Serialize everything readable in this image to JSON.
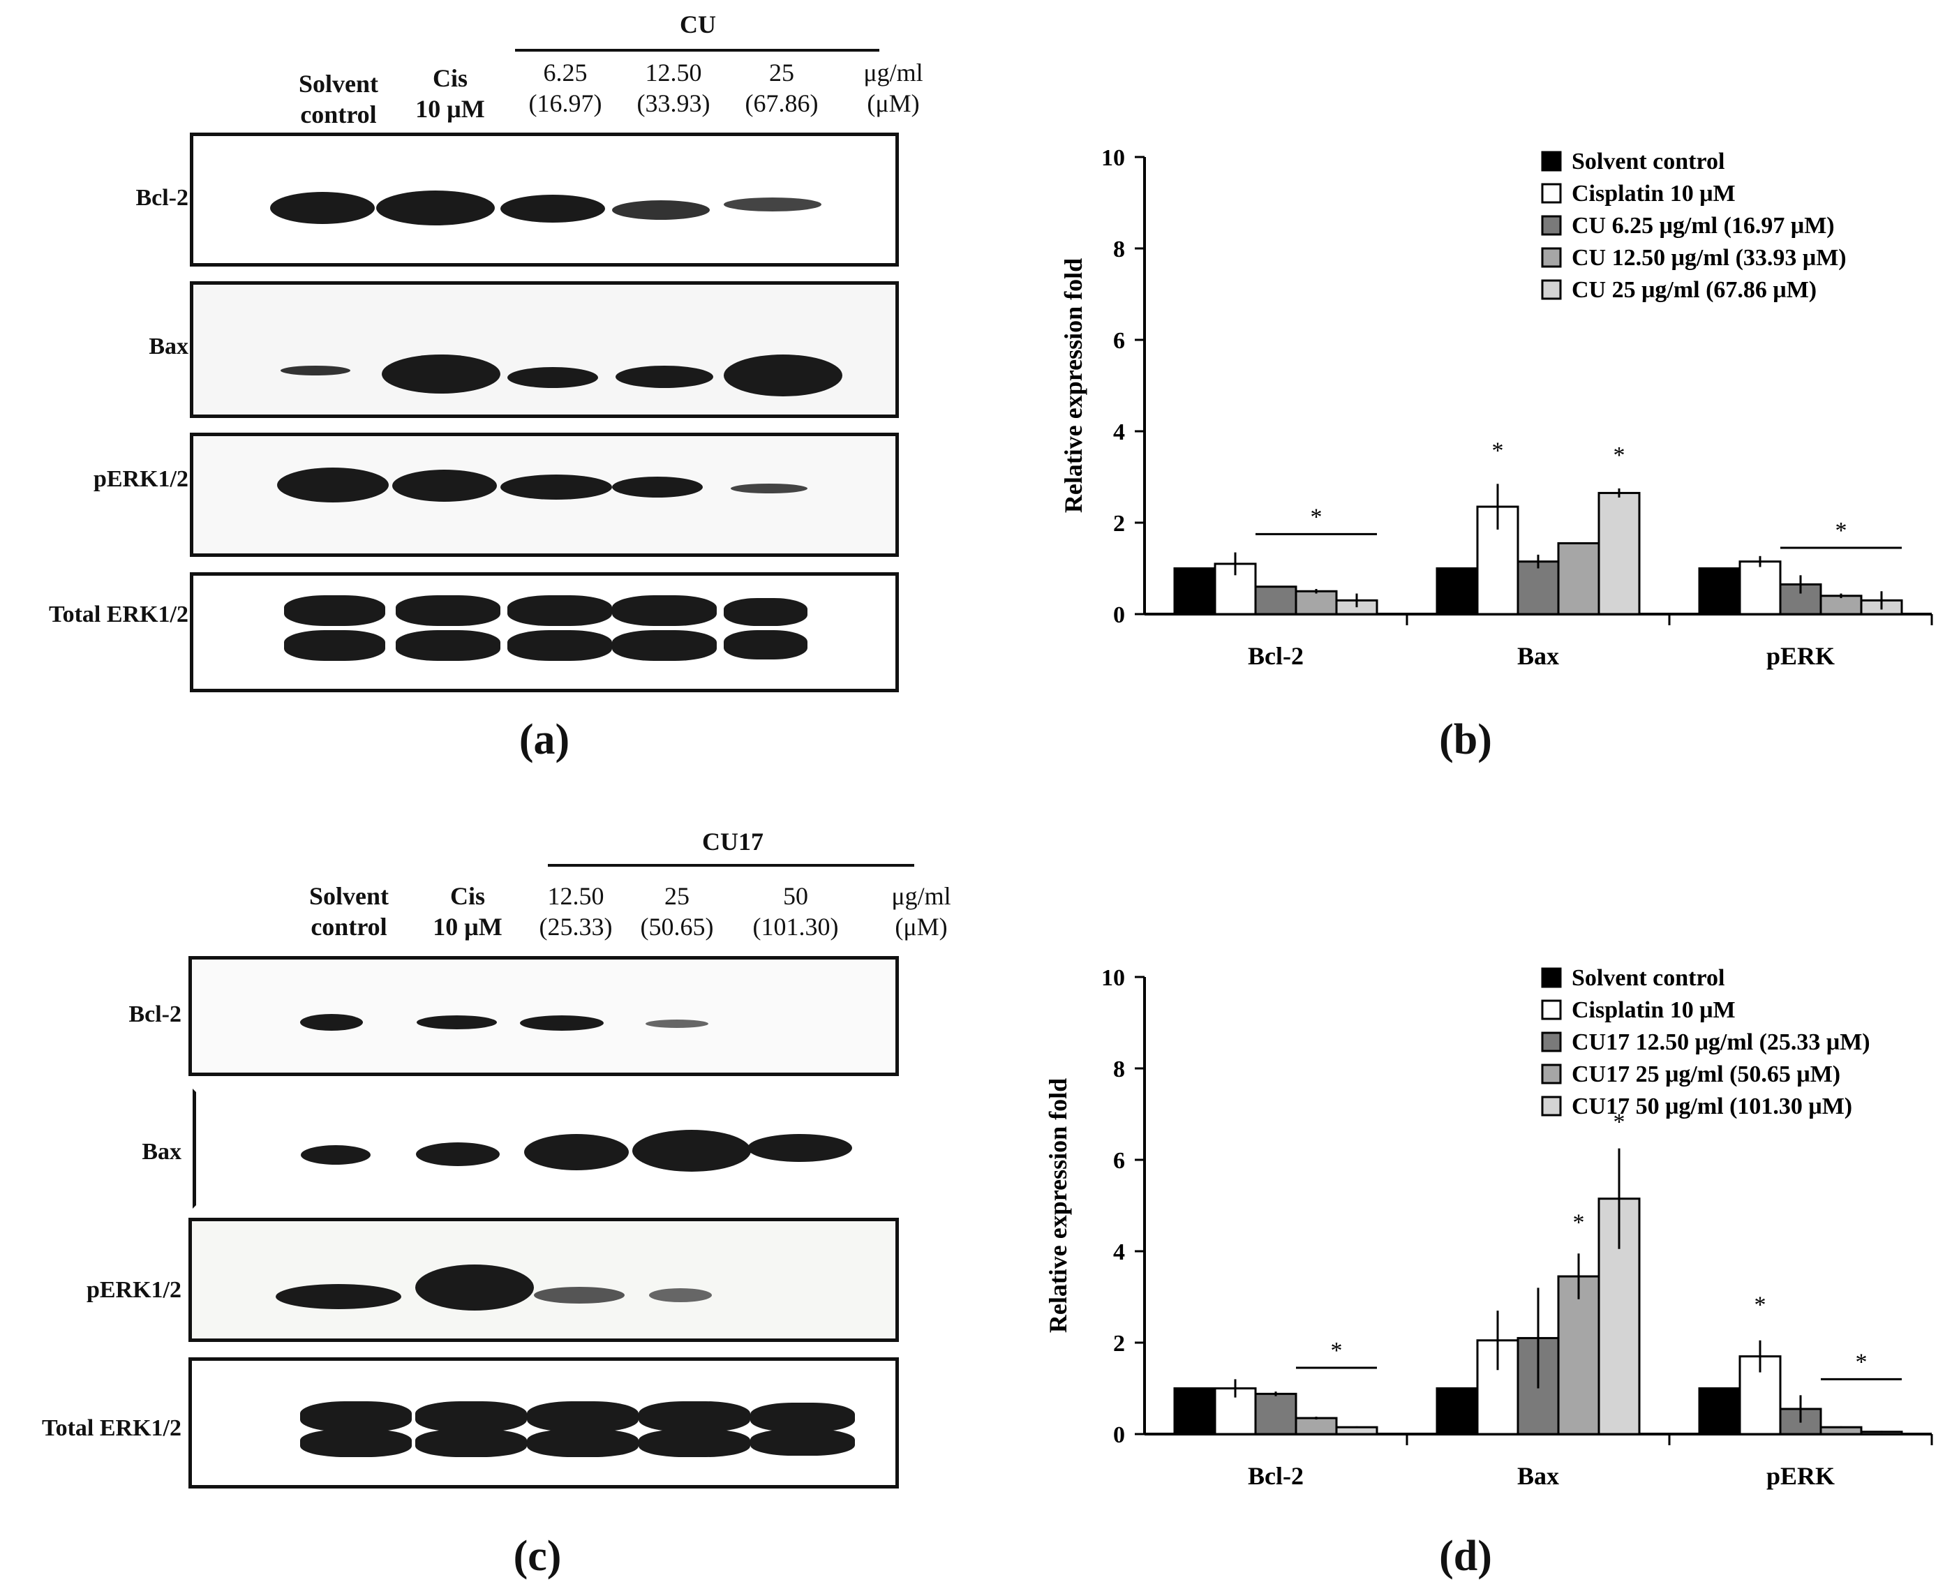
{
  "panel_labels": [
    "(a)",
    "(b)",
    "(c)",
    "(d)"
  ],
  "blot_a": {
    "group_label": "CU",
    "lanes": [
      {
        "line1": "Solvent",
        "line2": "control"
      },
      {
        "line1": "Cis",
        "line2": "10 μM"
      },
      {
        "line1": "6.25",
        "line2": "(16.97)"
      },
      {
        "line1": "12.50",
        "line2": "(33.93)"
      },
      {
        "line1": "25",
        "line2": "(67.86)"
      },
      {
        "line1": "μg/ml",
        "line2": "(μM)"
      }
    ],
    "rows": [
      "Bcl-2",
      "Bax",
      "pERK1/2",
      "Total ERK1/2"
    ]
  },
  "blot_c": {
    "group_label": "CU17",
    "lanes": [
      {
        "line1": "Solvent",
        "line2": "control"
      },
      {
        "line1": "Cis",
        "line2": "10 μM"
      },
      {
        "line1": "12.50",
        "line2": "(25.33)"
      },
      {
        "line1": "25",
        "line2": "(50.65)"
      },
      {
        "line1": "50",
        "line2": "(101.30)"
      },
      {
        "line1": "μg/ml",
        "line2": "(μM)"
      }
    ],
    "rows": [
      "Bcl-2",
      "Bax",
      "pERK1/2",
      "Total ERK1/2"
    ]
  },
  "chart_data": [
    {
      "type": "bar",
      "ylabel": "Relative expression fold",
      "ylim": [
        0,
        10
      ],
      "yticks": [
        "0",
        "2",
        "4",
        "6",
        "8",
        "10"
      ],
      "categories": [
        "Bcl-2",
        "Bax",
        "pERK"
      ],
      "colors": [
        "#000000",
        "#ffffff",
        "#7a7a7a",
        "#a6a6a6",
        "#d4d4d4"
      ],
      "legend_position": "top-right",
      "series": [
        {
          "name": "Solvent control",
          "values": [
            1.0,
            1.0,
            1.0
          ],
          "errors": [
            0,
            0,
            0
          ]
        },
        {
          "name": "Cisplatin 10 μM",
          "values": [
            1.1,
            2.35,
            1.15
          ],
          "errors": [
            0.25,
            0.5,
            0.12
          ]
        },
        {
          "name": "CU 6.25 μg/ml (16.97 μM)",
          "values": [
            0.6,
            1.15,
            0.65
          ],
          "errors": [
            0,
            0.15,
            0.2
          ]
        },
        {
          "name": "CU 12.50 μg/ml (33.93 μM)",
          "values": [
            0.5,
            1.55,
            0.4
          ],
          "errors": [
            0.05,
            0,
            0.05
          ]
        },
        {
          "name": "CU 25 μg/ml (67.86 μM)",
          "values": [
            0.3,
            2.65,
            0.3
          ],
          "errors": [
            0.15,
            0.1,
            0.2
          ]
        }
      ],
      "significance": [
        {
          "label": "*",
          "category": 0,
          "from_series": 2,
          "to_series": 4,
          "y": 1.75
        },
        {
          "label": "*",
          "category": 1,
          "series": 1,
          "y": 3.2
        },
        {
          "label": "*",
          "category": 1,
          "series": 4,
          "y": 3.1
        },
        {
          "label": "*",
          "category": 2,
          "from_series": 2,
          "to_series": 4,
          "y": 1.45
        }
      ]
    },
    {
      "type": "bar",
      "ylabel": "Relative expression fold",
      "ylim": [
        0,
        10
      ],
      "yticks": [
        "0",
        "2",
        "4",
        "6",
        "8",
        "10"
      ],
      "categories": [
        "Bcl-2",
        "Bax",
        "pERK"
      ],
      "colors": [
        "#000000",
        "#ffffff",
        "#7a7a7a",
        "#a6a6a6",
        "#d4d4d4"
      ],
      "legend_position": "top-right",
      "series": [
        {
          "name": "Solvent control",
          "values": [
            1.0,
            1.0,
            1.0
          ],
          "errors": [
            0,
            0,
            0
          ]
        },
        {
          "name": "Cisplatin 10 μM",
          "values": [
            1.0,
            2.05,
            1.7
          ],
          "errors": [
            0.2,
            0.65,
            0.35
          ]
        },
        {
          "name": "CU17 12.50 μg/ml (25.33 μM)",
          "values": [
            0.88,
            2.1,
            0.55
          ],
          "errors": [
            0.05,
            1.1,
            0.3
          ]
        },
        {
          "name": "CU17 25 μg/ml (50.65 μM)",
          "values": [
            0.35,
            3.45,
            0.15
          ],
          "errors": [
            0.03,
            0.5,
            0.02
          ]
        },
        {
          "name": "CU17 50 μg/ml (101.30 μM)",
          "values": [
            0.15,
            5.15,
            0.05
          ],
          "errors": [
            0.02,
            1.1,
            0.02
          ]
        }
      ],
      "significance": [
        {
          "label": "*",
          "category": 0,
          "from_series": 3,
          "to_series": 4,
          "y": 1.45
        },
        {
          "label": "*",
          "category": 1,
          "series": 3,
          "y": 4.25
        },
        {
          "label": "*",
          "category": 1,
          "series": 4,
          "y": 6.45
        },
        {
          "label": "*",
          "category": 2,
          "series": 1,
          "y": 2.45
        },
        {
          "label": "*",
          "category": 2,
          "from_series": 3,
          "to_series": 4,
          "y": 1.2
        }
      ]
    }
  ]
}
